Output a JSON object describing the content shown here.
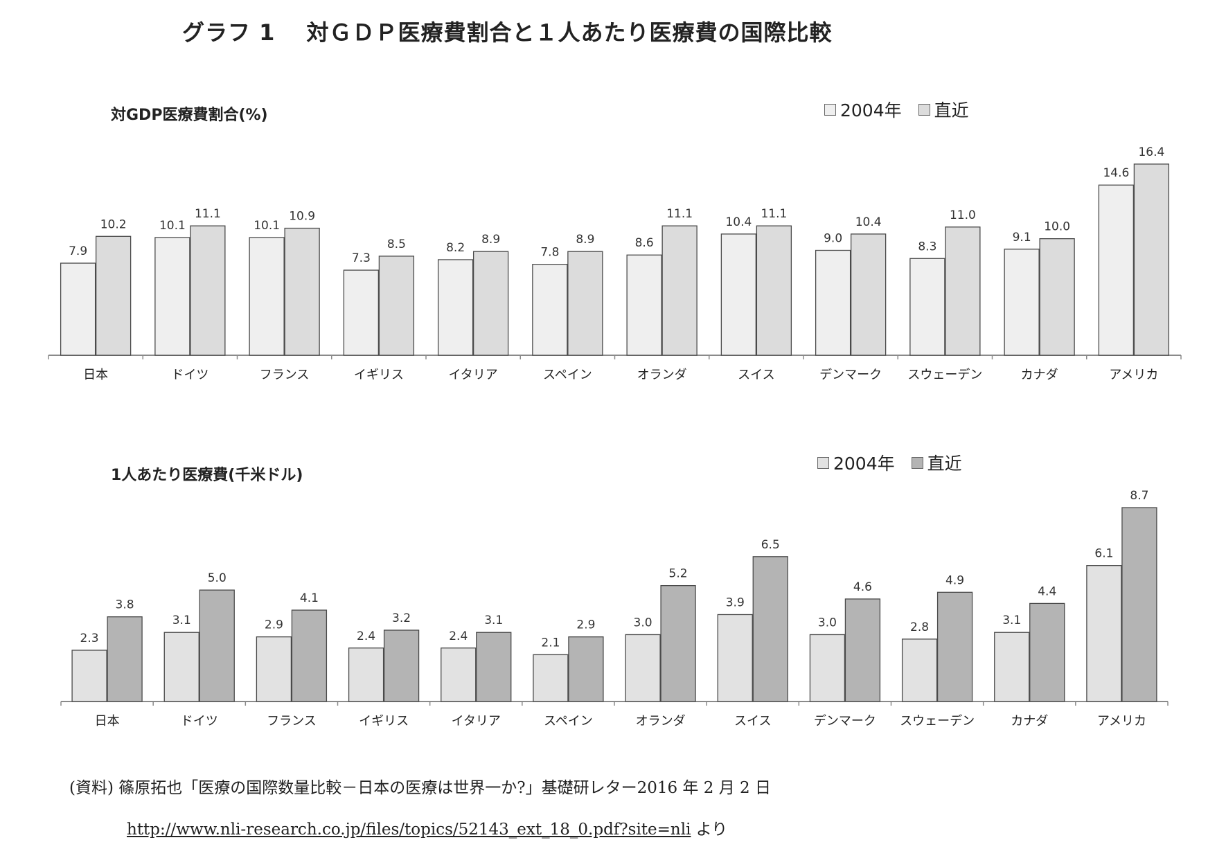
{
  "title": "グラフ 1　 対ＧＤＰ医療費割合と１人あたり医療費の国際比較",
  "colors": {
    "s2004_top": "#efefef",
    "s_recent_top": "#dcdcdc",
    "s2004_bottom": "#e2e2e2",
    "s_recent_bottom": "#b4b4b4",
    "stroke": "#4a4a4a"
  },
  "chart_data": [
    {
      "type": "bar",
      "title": "対GDP医療費割合(%)",
      "categories": [
        "日本",
        "ドイツ",
        "フランス",
        "イギリス",
        "イタリア",
        "スペイン",
        "オランダ",
        "スイス",
        "デンマーク",
        "スウェーデン",
        "カナダ",
        "アメリカ"
      ],
      "series": [
        {
          "name": "2004年",
          "values": [
            7.9,
            10.1,
            10.1,
            7.3,
            8.2,
            7.8,
            8.6,
            10.4,
            9.0,
            8.3,
            9.1,
            14.6
          ]
        },
        {
          "name": "直近",
          "values": [
            10.2,
            11.1,
            10.9,
            8.5,
            8.9,
            8.9,
            11.1,
            11.1,
            10.4,
            11.0,
            10.0,
            16.4
          ]
        }
      ],
      "ylim": [
        0,
        18
      ],
      "legend": "top-right",
      "grid": false
    },
    {
      "type": "bar",
      "title": "1人あたり医療費(千米ドル)",
      "categories": [
        "日本",
        "ドイツ",
        "フランス",
        "イギリス",
        "イタリア",
        "スペイン",
        "オランダ",
        "スイス",
        "デンマーク",
        "スウェーデン",
        "カナダ",
        "アメリカ"
      ],
      "series": [
        {
          "name": "2004年",
          "values": [
            2.3,
            3.1,
            2.9,
            2.4,
            2.4,
            2.1,
            3.0,
            3.9,
            3.0,
            2.8,
            3.1,
            6.1
          ]
        },
        {
          "name": "直近",
          "values": [
            3.8,
            5.0,
            4.1,
            3.2,
            3.1,
            2.9,
            5.2,
            6.5,
            4.6,
            4.9,
            4.4,
            8.7
          ]
        }
      ],
      "ylim": [
        0,
        9.6
      ],
      "legend": "top-right",
      "grid": false
    }
  ],
  "footer": {
    "source": "(資料) 篠原拓也「医療の国際数量比較－日本の医療は世界一か?」基礎研レター2016 年 2 月 2 日",
    "url": "http://www.nli-research.co.jp/files/topics/52143_ext_18_0.pdf?site=nli",
    "url_suffix": "より"
  }
}
